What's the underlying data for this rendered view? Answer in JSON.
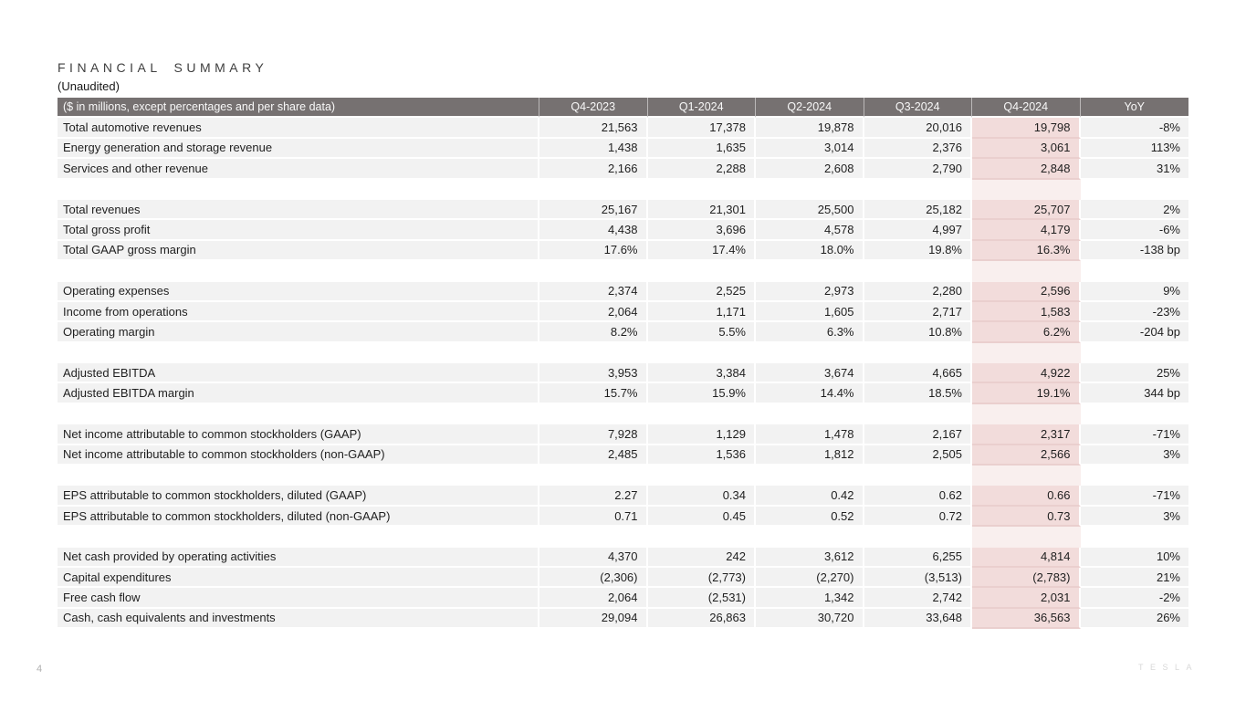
{
  "slide": {
    "title": "FINANCIAL SUMMARY",
    "subtitle": "(Unaudited)",
    "page_number": "4",
    "brand_logo_text": "TESLA"
  },
  "colors": {
    "header_bg": "#767171",
    "row_bg": "#f2f2f2",
    "highlight_bg": "#f2dcdb",
    "highlight_separator": "#eacfce",
    "highlight_spacer_bg": "#f9efee"
  },
  "table": {
    "header": {
      "label": "($ in millions, except percentages and per share data)",
      "columns": [
        "Q4-2023",
        "Q1-2024",
        "Q2-2024",
        "Q3-2024",
        "Q4-2024",
        "YoY"
      ],
      "highlight_column": "Q4-2024"
    },
    "groups": [
      {
        "rows": [
          {
            "label": "Total automotive revenues",
            "values": [
              "21,563",
              "17,378",
              "19,878",
              "20,016",
              "19,798",
              "-8%"
            ]
          },
          {
            "label": "Energy generation and storage revenue",
            "values": [
              "1,438",
              "1,635",
              "3,014",
              "2,376",
              "3,061",
              "113%"
            ]
          },
          {
            "label": "Services and other revenue",
            "values": [
              "2,166",
              "2,288",
              "2,608",
              "2,790",
              "2,848",
              "31%"
            ]
          }
        ]
      },
      {
        "rows": [
          {
            "label": "Total revenues",
            "values": [
              "25,167",
              "21,301",
              "25,500",
              "25,182",
              "25,707",
              "2%"
            ]
          },
          {
            "label": "Total gross profit",
            "values": [
              "4,438",
              "3,696",
              "4,578",
              "4,997",
              "4,179",
              "-6%"
            ]
          },
          {
            "label": "Total GAAP gross margin",
            "values": [
              "17.6%",
              "17.4%",
              "18.0%",
              "19.8%",
              "16.3%",
              "-138 bp"
            ]
          }
        ]
      },
      {
        "rows": [
          {
            "label": "Operating expenses",
            "values": [
              "2,374",
              "2,525",
              "2,973",
              "2,280",
              "2,596",
              "9%"
            ]
          },
          {
            "label": "Income from operations",
            "values": [
              "2,064",
              "1,171",
              "1,605",
              "2,717",
              "1,583",
              "-23%"
            ]
          },
          {
            "label": "Operating margin",
            "values": [
              "8.2%",
              "5.5%",
              "6.3%",
              "10.8%",
              "6.2%",
              "-204 bp"
            ]
          }
        ]
      },
      {
        "rows": [
          {
            "label": "Adjusted EBITDA",
            "values": [
              "3,953",
              "3,384",
              "3,674",
              "4,665",
              "4,922",
              "25%"
            ]
          },
          {
            "label": "Adjusted EBITDA margin",
            "values": [
              "15.7%",
              "15.9%",
              "14.4%",
              "18.5%",
              "19.1%",
              "344 bp"
            ]
          }
        ]
      },
      {
        "rows": [
          {
            "label": "Net income attributable to common stockholders (GAAP)",
            "values": [
              "7,928",
              "1,129",
              "1,478",
              "2,167",
              "2,317",
              "-71%"
            ]
          },
          {
            "label": "Net income attributable to common stockholders (non-GAAP)",
            "values": [
              "2,485",
              "1,536",
              "1,812",
              "2,505",
              "2,566",
              "3%"
            ]
          }
        ]
      },
      {
        "rows": [
          {
            "label": "EPS attributable to common stockholders, diluted (GAAP)",
            "values": [
              "2.27",
              "0.34",
              "0.42",
              "0.62",
              "0.66",
              "-71%"
            ]
          },
          {
            "label": "EPS attributable to common stockholders, diluted (non-GAAP)",
            "values": [
              "0.71",
              "0.45",
              "0.52",
              "0.72",
              "0.73",
              "3%"
            ]
          }
        ]
      },
      {
        "rows": [
          {
            "label": "Net cash provided by operating activities",
            "values": [
              "4,370",
              "242",
              "3,612",
              "6,255",
              "4,814",
              "10%"
            ]
          },
          {
            "label": "Capital expenditures",
            "values": [
              "(2,306)",
              "(2,773)",
              "(2,270)",
              "(3,513)",
              "(2,783)",
              "21%"
            ]
          },
          {
            "label": "Free cash flow",
            "values": [
              "2,064",
              "(2,531)",
              "1,342",
              "2,742",
              "2,031",
              "-2%"
            ]
          },
          {
            "label": "Cash, cash equivalents and investments",
            "values": [
              "29,094",
              "26,863",
              "30,720",
              "33,648",
              "36,563",
              "26%"
            ]
          }
        ]
      }
    ]
  }
}
